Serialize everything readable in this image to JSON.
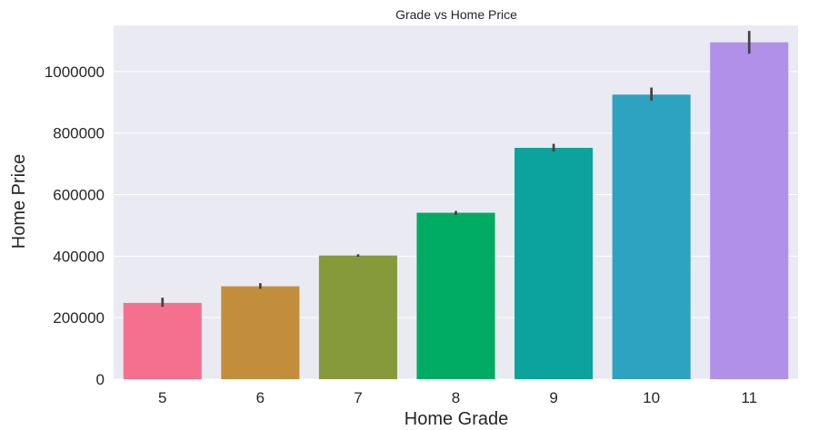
{
  "chart_data": {
    "type": "bar",
    "title": "Grade vs Home Price",
    "xlabel": "Home Grade",
    "ylabel": "Home Price",
    "categories": [
      "5",
      "6",
      "7",
      "8",
      "9",
      "10",
      "11"
    ],
    "values": [
      248000,
      302000,
      402000,
      541000,
      752000,
      925000,
      1095000
    ],
    "error_bars": [
      [
        235000,
        265000
      ],
      [
        294000,
        312000
      ],
      [
        398000,
        406000
      ],
      [
        534000,
        547000
      ],
      [
        740000,
        765000
      ],
      [
        905000,
        948000
      ],
      [
        1058000,
        1132000
      ]
    ],
    "colors": [
      "#f5708f",
      "#c38e3c",
      "#86993b",
      "#00ab64",
      "#0ba39b",
      "#2ea2c1",
      "#b190ea"
    ],
    "ylim": [
      0,
      1150000
    ],
    "yticks": [
      0,
      200000,
      400000,
      600000,
      800000,
      1000000
    ],
    "ytick_labels": [
      "0",
      "200000",
      "400000",
      "600000",
      "800000",
      "1000000"
    ],
    "grid": true,
    "background": "#eaeaf2",
    "gridline_color": "#ffffff",
    "errorbar_color": "#424242"
  }
}
